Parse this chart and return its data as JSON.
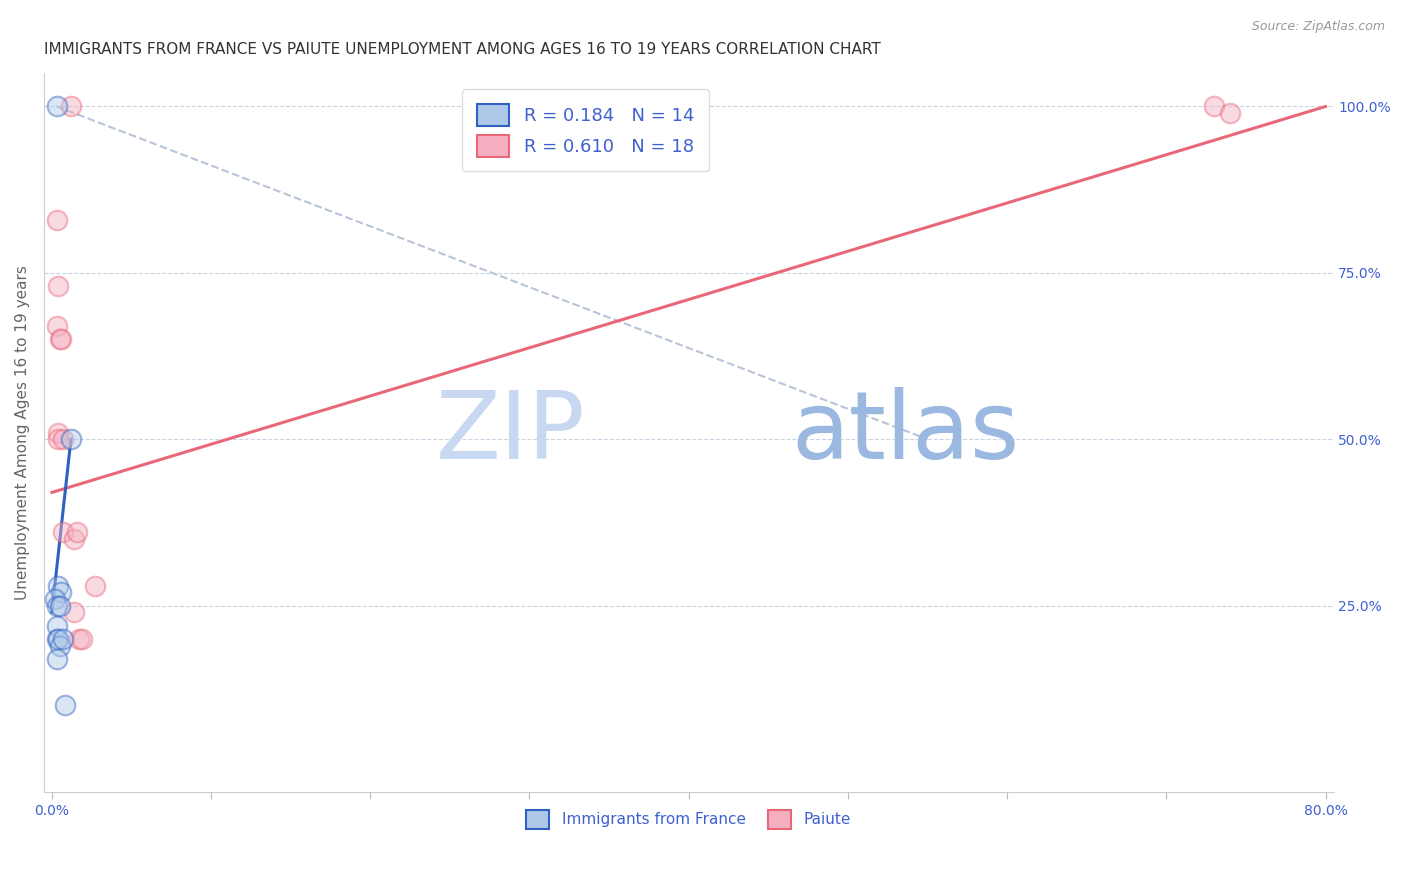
{
  "title": "IMMIGRANTS FROM FRANCE VS PAIUTE UNEMPLOYMENT AMONG AGES 16 TO 19 YEARS CORRELATION CHART",
  "source": "Source: ZipAtlas.com",
  "xlabel_blue": "Immigrants from France",
  "xlabel_pink": "Paiute",
  "ylabel": "Unemployment Among Ages 16 to 19 years",
  "xlim": [
    0.0,
    0.8
  ],
  "ylim": [
    0.0,
    1.05
  ],
  "xticks": [
    0.0,
    0.1,
    0.2,
    0.3,
    0.4,
    0.5,
    0.6,
    0.7,
    0.8
  ],
  "xticklabels": [
    "0.0%",
    "",
    "",
    "",
    "",
    "",
    "",
    "",
    "80.0%"
  ],
  "yticks_right": [
    0.25,
    0.5,
    0.75,
    1.0
  ],
  "ytick_right_labels": [
    "25.0%",
    "50.0%",
    "75.0%",
    "100.0%"
  ],
  "hgrid_values": [
    0.25,
    0.5,
    0.75,
    1.0
  ],
  "blue_scatter_x": [
    0.003,
    0.012,
    0.004,
    0.006,
    0.002,
    0.003,
    0.005,
    0.003,
    0.003,
    0.004,
    0.005,
    0.007,
    0.003,
    0.008
  ],
  "blue_scatter_y": [
    1.0,
    0.5,
    0.28,
    0.27,
    0.26,
    0.25,
    0.25,
    0.22,
    0.2,
    0.2,
    0.19,
    0.2,
    0.17,
    0.1
  ],
  "pink_scatter_x": [
    0.012,
    0.003,
    0.004,
    0.003,
    0.005,
    0.006,
    0.004,
    0.004,
    0.007,
    0.007,
    0.014,
    0.016,
    0.027,
    0.014,
    0.017,
    0.019,
    0.73,
    0.74
  ],
  "pink_scatter_y": [
    1.0,
    0.83,
    0.73,
    0.67,
    0.65,
    0.65,
    0.51,
    0.5,
    0.5,
    0.36,
    0.35,
    0.36,
    0.28,
    0.24,
    0.2,
    0.2,
    1.0,
    0.99
  ],
  "blue_line_x": [
    0.0,
    0.012
  ],
  "blue_line_y": [
    0.24,
    0.5
  ],
  "pink_line_x": [
    0.0,
    0.8
  ],
  "pink_line_y": [
    0.42,
    1.0
  ],
  "gray_dashed_line_x": [
    0.003,
    0.55
  ],
  "gray_dashed_line_y": [
    1.0,
    0.5
  ],
  "R_blue": "0.184",
  "N_blue": "14",
  "R_pink": "0.610",
  "N_pink": "18",
  "blue_color": "#adc8e8",
  "pink_color": "#f5afc0",
  "blue_line_color": "#3060c0",
  "pink_line_color": "#e86878",
  "gray_dashed_color": "#b8c4d8",
  "legend_text_color": "#4060d0",
  "watermark_zip_color": "#c8d8f0",
  "watermark_atlas_color": "#9ab8e0",
  "background_color": "#ffffff",
  "title_fontsize": 11,
  "axis_label_fontsize": 11,
  "tick_fontsize": 10,
  "scatter_size": 200,
  "scatter_linewidth": 1.5,
  "scatter_alpha": 0.45
}
